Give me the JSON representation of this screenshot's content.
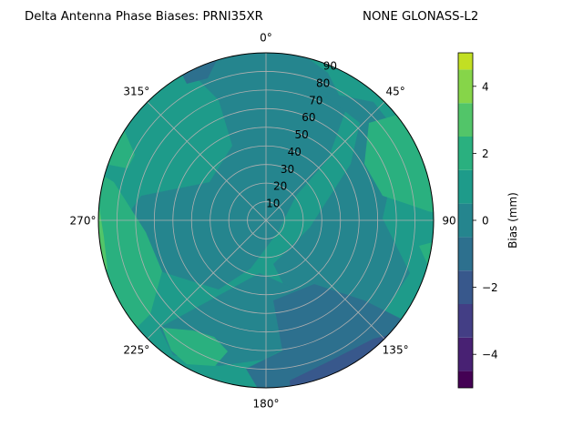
{
  "chart_data": {
    "type": "heatmap",
    "projection": "polar",
    "title_left": "Delta Antenna Phase Biases: PRNI35XR",
    "title_right": "NONE GLONASS-L2",
    "theta_zero_location": "top",
    "theta_direction": "clockwise",
    "angle_tick_labels": [
      "0°",
      "45°",
      "90",
      "135°",
      "180°",
      "225°",
      "270°",
      "315°"
    ],
    "radial_tick_labels": [
      "10",
      "20",
      "30",
      "40",
      "50",
      "60",
      "70",
      "80",
      "90"
    ],
    "radial_range": [
      0,
      90
    ],
    "grid": true,
    "colorbar": {
      "label": "Bias (mm)",
      "range": [
        -5,
        5
      ],
      "tick_labels": [
        "−4",
        "−2",
        "0",
        "2",
        "4"
      ],
      "levels": [
        -5,
        -4.5,
        -4,
        -3.5,
        -3,
        -2.5,
        -2,
        -1.5,
        -1,
        -0.5,
        0,
        0.5,
        1,
        1.5,
        2,
        2.5,
        3,
        3.5,
        4,
        4.5,
        5
      ],
      "colors": [
        "#440154",
        "#482173",
        "#433e85",
        "#38588c",
        "#2d708e",
        "#25858e",
        "#1e9b8a",
        "#2ab07f",
        "#52c569",
        "#86d549",
        "#c2df23",
        "#fde725"
      ]
    },
    "regions": [
      {
        "value_range": [
          0,
          1
        ],
        "description": "background field"
      },
      {
        "value_range": [
          -1,
          0
        ],
        "description": "north and central band"
      },
      {
        "value_range": [
          1,
          2
        ],
        "description": "west-southwest and south-southwest band"
      },
      {
        "value_range": [
          2,
          3
        ],
        "description": "east-northeast and west edge"
      },
      {
        "value_range": [
          3,
          4
        ],
        "description": "west edge near 280°"
      },
      {
        "value_range": [
          -2,
          -1
        ],
        "description": "south-southeast"
      },
      {
        "value_range": [
          -3,
          -2
        ],
        "description": "south-southeast edge"
      }
    ]
  },
  "colors": {
    "background": "#ffffff",
    "grid": "#b0b0b0",
    "axes": "#000000"
  }
}
